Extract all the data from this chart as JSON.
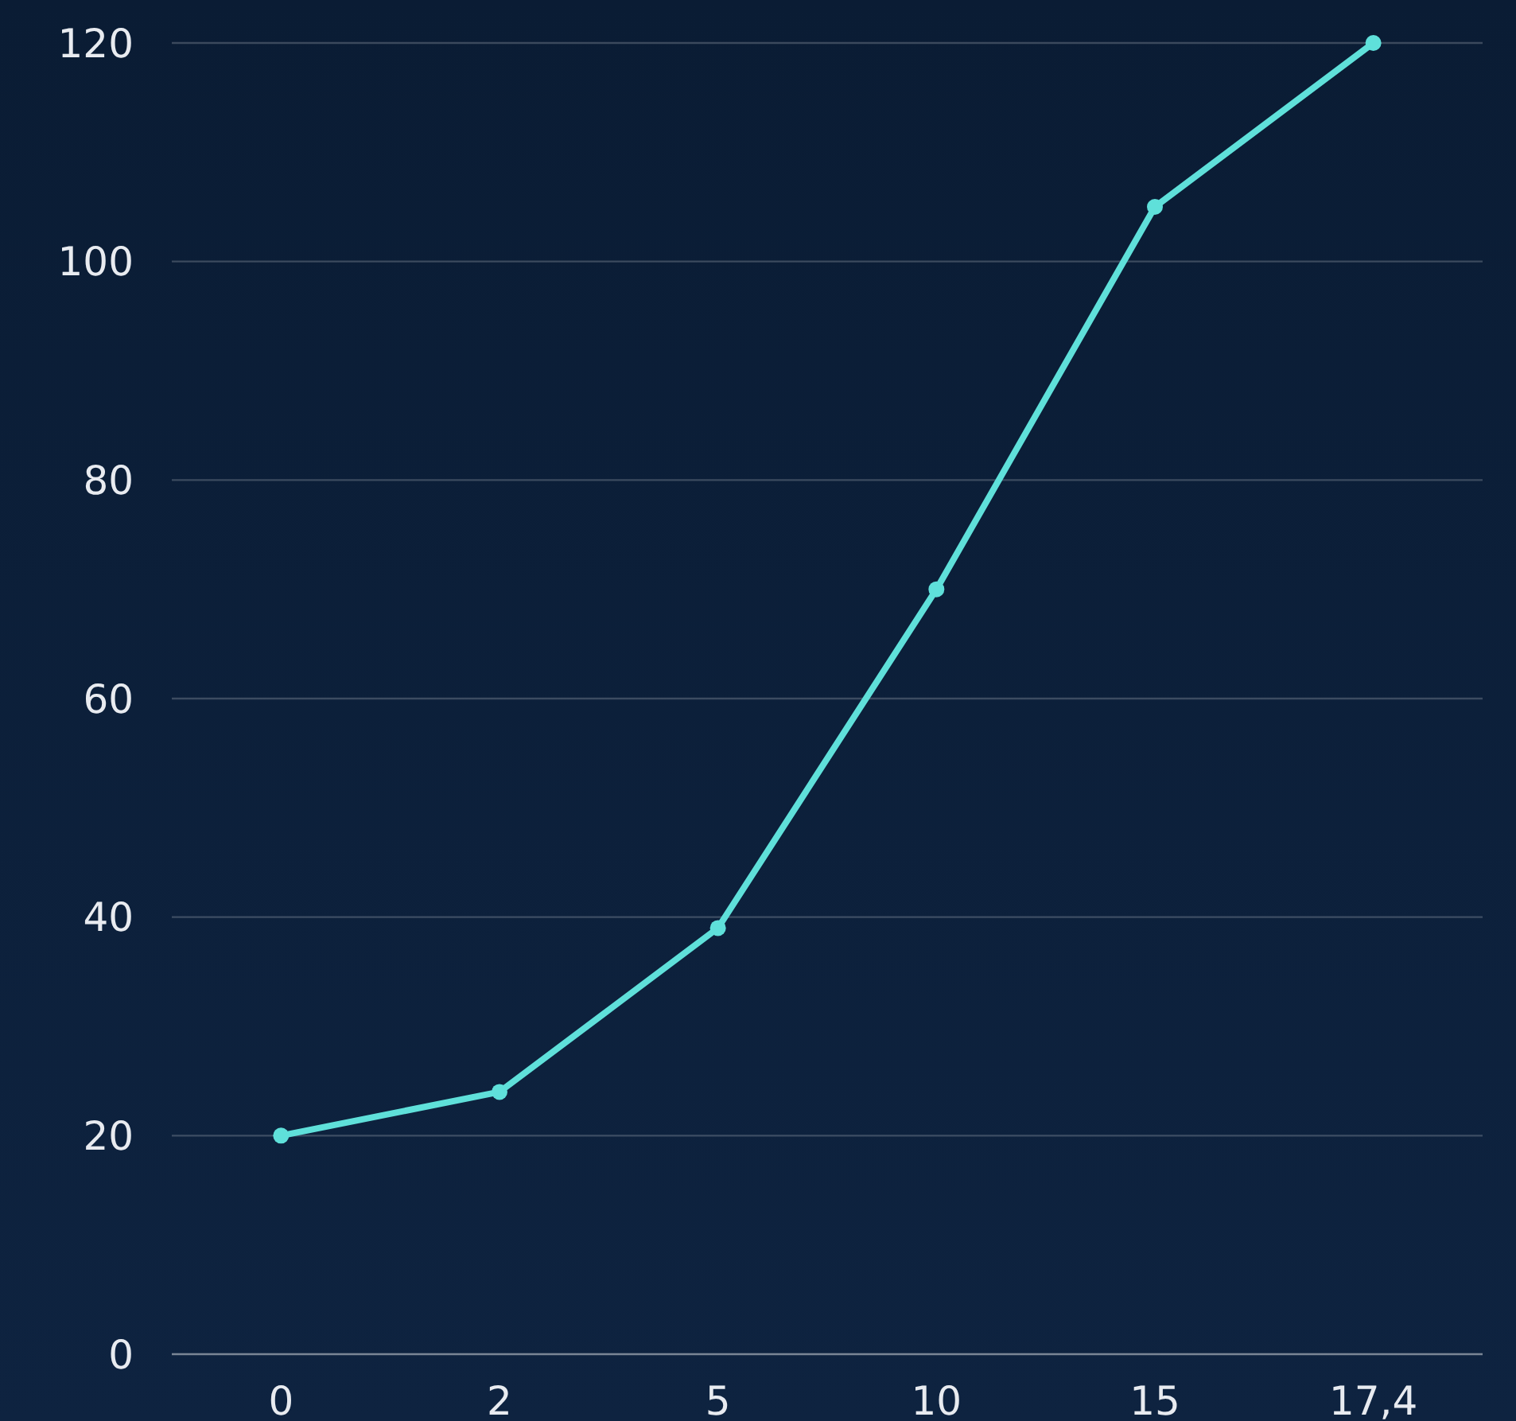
{
  "chart_data": {
    "type": "line",
    "categories": [
      "0",
      "2",
      "5",
      "10",
      "15",
      "17,4"
    ],
    "series": [
      {
        "color": "#5fe0da",
        "values": [
          20,
          24,
          39,
          70,
          105,
          120
        ]
      }
    ],
    "ylim": [
      0,
      120
    ],
    "yticks": [
      0,
      20,
      40,
      60,
      80,
      100,
      120
    ],
    "grid": "y",
    "marker": "circle",
    "line_style": "solid"
  }
}
